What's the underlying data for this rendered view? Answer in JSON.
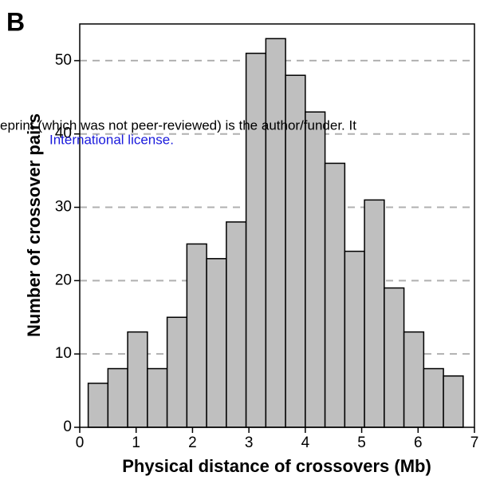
{
  "chart_data": {
    "type": "histogram",
    "panel_label": "B",
    "annotations": [
      "eprint (which was not peer-reviewed) is the author/funder. It",
      "International license."
    ],
    "xlabel": "Physical distance of crossovers (Mb)",
    "ylabel": "Number of crossover pairs",
    "bins": [
      0.15,
      0.5,
      0.85,
      1.2,
      1.55,
      1.9,
      2.25,
      2.6,
      2.95,
      3.3,
      3.65,
      4.0,
      4.35,
      4.7,
      5.05,
      5.4,
      5.75,
      6.1,
      6.45,
      6.8
    ],
    "counts": [
      6,
      8,
      13,
      8,
      15,
      25,
      23,
      28,
      51,
      53,
      48,
      43,
      36,
      24,
      31,
      19,
      13,
      8,
      7
    ],
    "color": "#bfbfbf",
    "xlim": [
      0,
      7
    ],
    "xticks": [
      0,
      1,
      2,
      3,
      4,
      5,
      6,
      7
    ],
    "ylim": [
      0,
      55
    ],
    "yticks": [
      0,
      10,
      20,
      30,
      40,
      50
    ],
    "grid": true
  }
}
